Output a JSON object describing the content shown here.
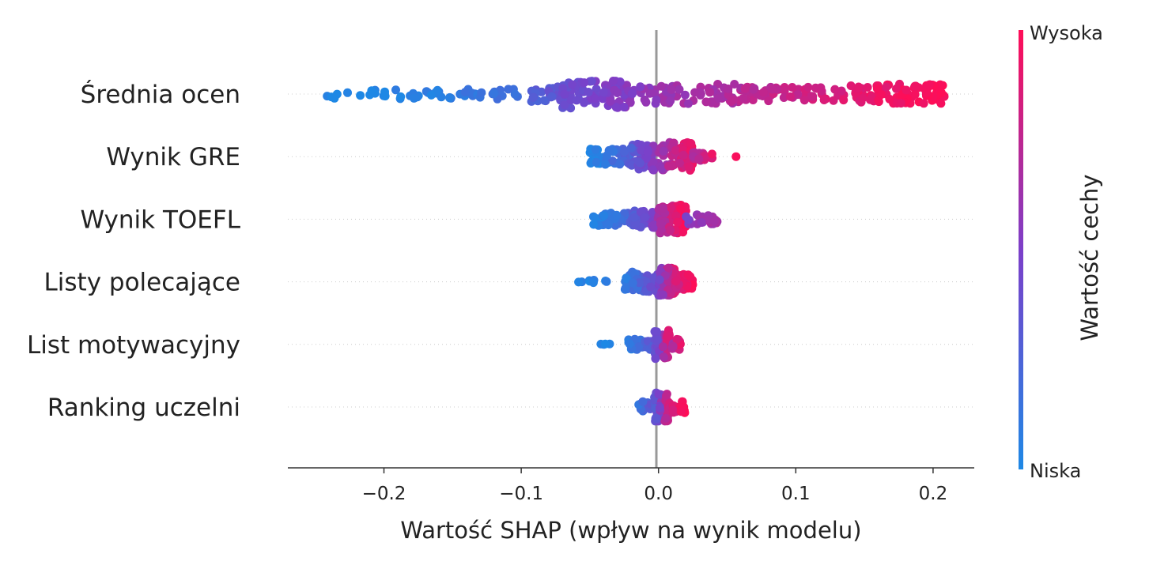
{
  "chart_data": {
    "type": "scatter",
    "subtype": "shap-beeswarm",
    "xlabel": "Wartość SHAP (wpływ na wynik modelu)",
    "xlim": [
      -0.27,
      0.23
    ],
    "xticks": [
      -0.2,
      -0.1,
      0.0,
      0.1,
      0.2
    ],
    "xtick_labels": [
      "−0.2",
      "−0.1",
      "0.0",
      "0.1",
      "0.2"
    ],
    "zero_line": true,
    "grid": false,
    "features": [
      {
        "name": "Średnia ocen",
        "bands": [
          {
            "x0": -0.25,
            "x1": -0.2,
            "n": 12,
            "c0": 0.0,
            "c1": 0.02,
            "w": 0.35
          },
          {
            "x0": -0.2,
            "x1": -0.1,
            "n": 45,
            "c0": 0.02,
            "c1": 0.18,
            "w": 0.35
          },
          {
            "x0": -0.1,
            "x1": -0.07,
            "n": 25,
            "c0": 0.2,
            "c1": 0.4,
            "w": 0.55
          },
          {
            "x0": -0.07,
            "x1": -0.02,
            "n": 80,
            "c0": 0.4,
            "c1": 0.55,
            "w": 1.0
          },
          {
            "x0": -0.02,
            "x1": 0.06,
            "n": 75,
            "c0": 0.55,
            "c1": 0.72,
            "w": 0.7
          },
          {
            "x0": 0.06,
            "x1": 0.14,
            "n": 55,
            "c0": 0.72,
            "c1": 0.88,
            "w": 0.5
          },
          {
            "x0": 0.14,
            "x1": 0.21,
            "n": 90,
            "c0": 0.88,
            "c1": 1.0,
            "w": 0.7
          }
        ]
      },
      {
        "name": "Wynik GRE",
        "bands": [
          {
            "x0": -0.05,
            "x1": -0.02,
            "n": 55,
            "c0": 0.0,
            "c1": 0.3,
            "w": 0.55
          },
          {
            "x0": -0.02,
            "x1": 0.0,
            "n": 60,
            "c0": 0.3,
            "c1": 0.6,
            "w": 0.95
          },
          {
            "x0": 0.0,
            "x1": 0.025,
            "n": 80,
            "c0": 0.6,
            "c1": 0.95,
            "w": 1.0
          },
          {
            "x0": 0.025,
            "x1": 0.04,
            "n": 20,
            "c0": 0.7,
            "c1": 0.9,
            "w": 0.3
          },
          {
            "x0": 0.056,
            "x1": 0.057,
            "n": 1,
            "c0": 1.0,
            "c1": 1.0,
            "w": 0.0
          }
        ]
      },
      {
        "name": "Wynik TOEFL",
        "bands": [
          {
            "x0": -0.048,
            "x1": -0.02,
            "n": 45,
            "c0": 0.0,
            "c1": 0.25,
            "w": 0.45
          },
          {
            "x0": -0.02,
            "x1": 0.0,
            "n": 50,
            "c0": 0.25,
            "c1": 0.6,
            "w": 0.6
          },
          {
            "x0": 0.0,
            "x1": 0.02,
            "n": 75,
            "c0": 0.65,
            "c1": 1.0,
            "w": 1.0
          },
          {
            "x0": 0.02,
            "x1": 0.043,
            "n": 25,
            "c0": 0.5,
            "c1": 0.7,
            "w": 0.35
          }
        ]
      },
      {
        "name": "Listy polecające",
        "bands": [
          {
            "x0": -0.06,
            "x1": -0.035,
            "n": 8,
            "c0": 0.0,
            "c1": 0.05,
            "w": 0.15
          },
          {
            "x0": -0.025,
            "x1": 0.0,
            "n": 55,
            "c0": 0.05,
            "c1": 0.45,
            "w": 0.7
          },
          {
            "x0": 0.0,
            "x1": 0.012,
            "n": 90,
            "c0": 0.45,
            "c1": 0.9,
            "w": 1.0
          },
          {
            "x0": 0.012,
            "x1": 0.025,
            "n": 35,
            "c0": 0.8,
            "c1": 1.0,
            "w": 0.55
          }
        ]
      },
      {
        "name": "List motywacyjny",
        "bands": [
          {
            "x0": -0.043,
            "x1": -0.035,
            "n": 4,
            "c0": 0.0,
            "c1": 0.05,
            "w": 0.05
          },
          {
            "x0": -0.022,
            "x1": -0.003,
            "n": 30,
            "c0": 0.05,
            "c1": 0.35,
            "w": 0.4
          },
          {
            "x0": -0.003,
            "x1": 0.008,
            "n": 70,
            "c0": 0.35,
            "c1": 0.9,
            "w": 1.0
          },
          {
            "x0": 0.008,
            "x1": 0.016,
            "n": 18,
            "c0": 0.6,
            "c1": 0.9,
            "w": 0.4
          }
        ]
      },
      {
        "name": "Ranking uczelni",
        "bands": [
          {
            "x0": -0.015,
            "x1": -0.003,
            "n": 15,
            "c0": 0.1,
            "c1": 0.4,
            "w": 0.4
          },
          {
            "x0": -0.003,
            "x1": 0.007,
            "n": 70,
            "c0": 0.3,
            "c1": 0.85,
            "w": 1.0
          },
          {
            "x0": 0.007,
            "x1": 0.02,
            "n": 22,
            "c0": 0.8,
            "c1": 1.0,
            "w": 0.4
          }
        ]
      }
    ],
    "colorbar": {
      "title": "Wartość cechy",
      "high_label": "Wysoka",
      "low_label": "Niska",
      "color_low": "#1E88E5",
      "color_high": "#FF0D57"
    }
  }
}
